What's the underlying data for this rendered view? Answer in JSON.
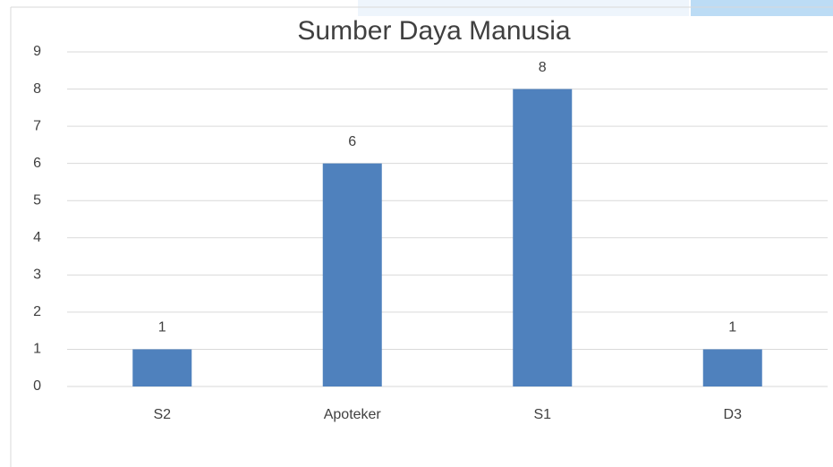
{
  "chart_data": {
    "type": "bar",
    "title": "Sumber Daya Manusia",
    "categories": [
      "S2",
      "Apoteker",
      "S1",
      "D3"
    ],
    "values": [
      1,
      6,
      8,
      1
    ],
    "color": "#4f81bd",
    "ylim": [
      0,
      9
    ],
    "yticks": [
      0,
      1,
      2,
      3,
      4,
      5,
      6,
      7,
      8,
      9
    ],
    "grid": true
  }
}
